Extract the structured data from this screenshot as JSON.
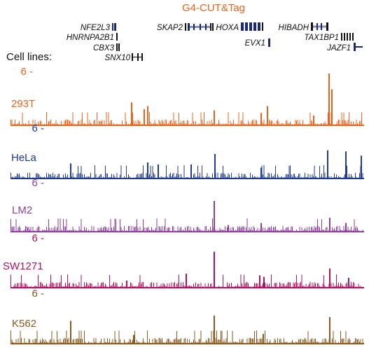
{
  "title": "G4-CUT&Tag",
  "cell_lines_label": "Cell lines:",
  "colors": {
    "title": "#e8641e",
    "gene": "#1a2a6c",
    "gene_intron": "#8a8fb5"
  },
  "genes": [
    {
      "id": "nfe2l3",
      "name": "NFE2L3"
    },
    {
      "id": "hnrnpa2b1",
      "name": "HNRNPA2B1"
    },
    {
      "id": "cbx3",
      "name": "CBX3"
    },
    {
      "id": "snx10",
      "name": "SNX10"
    },
    {
      "id": "skap2",
      "name": "SKAP2"
    },
    {
      "id": "hoxa",
      "name": "HOXA"
    },
    {
      "id": "evx1",
      "name": "EVX1"
    },
    {
      "id": "hibadh",
      "name": "HIBADH"
    },
    {
      "id": "tax1bp1",
      "name": "TAX1BP1"
    },
    {
      "id": "jazf1",
      "name": "JAZF1"
    }
  ],
  "tracks": [
    {
      "id": "293t",
      "name": "293T",
      "color": "#e8641e",
      "scale": "6 -",
      "scale_color": "#e8641e"
    },
    {
      "id": "hela",
      "name": "HeLa",
      "color": "#1f3a8f",
      "scale": "6 -",
      "scale_color": "#1f3a8f"
    },
    {
      "id": "lm2",
      "name": "LM2",
      "color": "#8e3f9e",
      "scale": "6 -",
      "scale_color": "#8e3f9e"
    },
    {
      "id": "sw1271",
      "name": "SW1271",
      "color": "#b0125f",
      "scale": "6 -",
      "scale_color": "#b0125f"
    },
    {
      "id": "k562",
      "name": "K562",
      "color": "#8a5a1e",
      "scale": "6 -",
      "scale_color": "#8a5a1e"
    }
  ]
}
